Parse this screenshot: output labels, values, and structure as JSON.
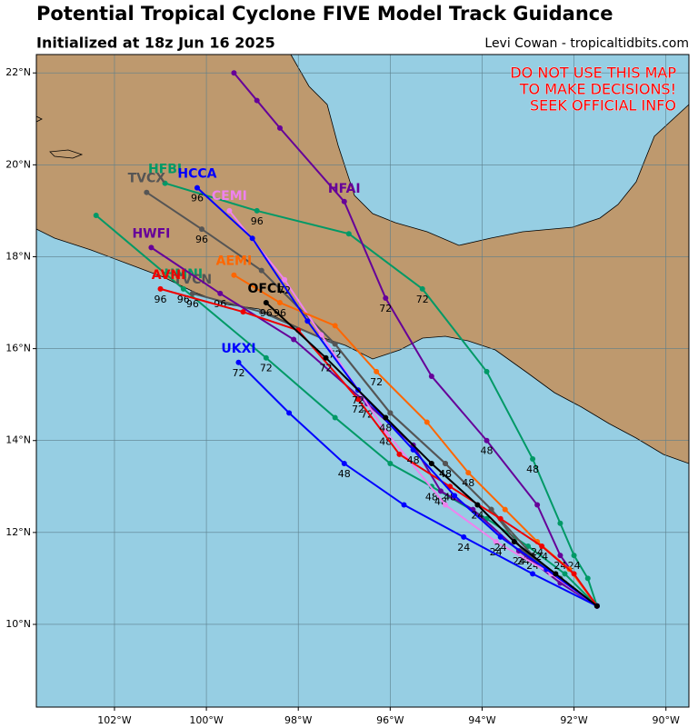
{
  "header": {
    "title": "Potential Tropical Cyclone FIVE Model Track Guidance",
    "subtitle": "Initialized at 18z Jun 16 2025",
    "credit": "Levi Cowan - tropicaltidbits.com"
  },
  "warning": [
    "DO NOT USE THIS MAP",
    "TO MAKE DECISIONS!",
    "SEEK OFFICIAL INFO"
  ],
  "map": {
    "xlim": [
      -103.7,
      -89.5
    ],
    "ylim": [
      8.2,
      22.4
    ],
    "xticks": [
      {
        "value": -102,
        "label": "102°W"
      },
      {
        "value": -100,
        "label": "100°W"
      },
      {
        "value": -98,
        "label": "98°W"
      },
      {
        "value": -96,
        "label": "96°W"
      },
      {
        "value": -94,
        "label": "94°W"
      },
      {
        "value": -92,
        "label": "92°W"
      },
      {
        "value": -90,
        "label": "90°W"
      }
    ],
    "yticks": [
      {
        "value": 10,
        "label": "10°N"
      },
      {
        "value": 12,
        "label": "12°N"
      },
      {
        "value": 14,
        "label": "14°N"
      },
      {
        "value": 16,
        "label": "16°N"
      },
      {
        "value": 18,
        "label": "18°N"
      },
      {
        "value": 20,
        "label": "20°N"
      },
      {
        "value": 22,
        "label": "22°N"
      }
    ],
    "grid": true,
    "tracks": [
      {
        "name": "HMNI",
        "color": "#009966",
        "lon": [
          -91.5,
          -92.2,
          -93.0,
          -93.9,
          -95.1,
          -96.0,
          -97.2,
          -98.7,
          -100.5,
          -102.4
        ],
        "lat": [
          10.4,
          11.1,
          11.7,
          12.3,
          13.0,
          13.5,
          14.5,
          15.8,
          17.3,
          18.9
        ],
        "hours": [
          null,
          null,
          24,
          null,
          48,
          null,
          null,
          72,
          96,
          null
        ]
      },
      {
        "name": "HFBI",
        "color": "#009966",
        "lon": [
          -91.5,
          -91.7,
          -92.0,
          -92.3,
          -92.9,
          -93.9,
          -95.3,
          -96.9,
          -98.9,
          -100.9
        ],
        "lat": [
          10.4,
          11.0,
          11.5,
          12.2,
          13.6,
          15.5,
          17.3,
          18.5,
          19.0,
          19.6
        ],
        "hours": [
          null,
          null,
          24,
          null,
          48,
          null,
          72,
          null,
          96,
          null
        ]
      },
      {
        "name": "TVCX",
        "color": "#555555",
        "lon": [
          -91.5,
          -92.2,
          -92.9,
          -93.8,
          -94.8,
          -96.0,
          -97.2,
          -98.8,
          -100.1,
          -101.3
        ],
        "lat": [
          10.4,
          10.9,
          11.5,
          12.5,
          13.5,
          14.6,
          16.1,
          17.7,
          18.6,
          19.4
        ],
        "hours": [
          null,
          null,
          24,
          null,
          48,
          null,
          72,
          null,
          96,
          null
        ]
      },
      {
        "name": "TVCN",
        "color": "#555555",
        "lon": [
          -91.5,
          -92.3,
          -93.1,
          -93.8,
          -94.8,
          -96.0,
          -97.2,
          -98.8,
          -100.3
        ],
        "lat": [
          10.4,
          11.0,
          11.6,
          12.5,
          13.5,
          14.6,
          16.1,
          16.8,
          17.2
        ],
        "hours": [
          null,
          null,
          24,
          null,
          48,
          null,
          72,
          null,
          96
        ]
      },
      {
        "name": "HWFI",
        "color": "#660099",
        "lon": [
          -91.5,
          -92.3,
          -93.2,
          -94.2,
          -94.9,
          -95.5,
          -96.5,
          -98.1,
          -99.7,
          -101.2
        ],
        "lat": [
          10.4,
          10.9,
          11.6,
          12.5,
          12.9,
          13.9,
          14.8,
          16.2,
          17.2,
          18.2
        ],
        "hours": [
          null,
          null,
          24,
          null,
          48,
          null,
          72,
          null,
          96,
          null
        ]
      },
      {
        "name": "HFAI",
        "color": "#660099",
        "lon": [
          -91.5,
          -92.3,
          -92.8,
          -93.9,
          -95.1,
          -96.1,
          -97.0,
          -98.4,
          -98.9,
          -99.4
        ],
        "lat": [
          10.4,
          11.5,
          12.6,
          14.0,
          15.4,
          17.1,
          19.2,
          20.8,
          21.4,
          22.0
        ],
        "hours": [
          null,
          24,
          null,
          48,
          null,
          72,
          null,
          null,
          null,
          null
        ]
      },
      {
        "name": "CEMI",
        "color": "#ee82ee",
        "lon": [
          -91.5,
          -92.5,
          -93.7,
          -94.8,
          -96.1,
          -97.5,
          -98.3,
          -99.5
        ],
        "lat": [
          10.4,
          11.1,
          11.8,
          12.6,
          14.2,
          16.3,
          17.5,
          19.0
        ],
        "hours": [
          null,
          null,
          24,
          null,
          48,
          null,
          72,
          null
        ]
      },
      {
        "name": "AEMI",
        "color": "#ff6600",
        "lon": [
          -91.5,
          -92.1,
          -92.8,
          -93.5,
          -94.3,
          -95.2,
          -96.3,
          -97.2,
          -98.4,
          -99.4
        ],
        "lat": [
          10.4,
          11.2,
          11.8,
          12.5,
          13.3,
          14.4,
          15.5,
          16.5,
          17.0,
          17.6
        ],
        "hours": [
          null,
          null,
          24,
          null,
          48,
          null,
          72,
          null,
          96,
          null
        ]
      },
      {
        "name": "AVNI",
        "color": "#ee0000",
        "lon": [
          -91.5,
          -92.0,
          -92.7,
          -93.6,
          -94.7,
          -95.8,
          -96.7,
          -98.0,
          -99.2,
          -101.0
        ],
        "lat": [
          10.4,
          11.1,
          11.7,
          12.3,
          13.0,
          13.7,
          14.9,
          16.4,
          16.8,
          17.3
        ],
        "hours": [
          null,
          null,
          24,
          null,
          48,
          null,
          72,
          null,
          null,
          96
        ]
      },
      {
        "name": "UKXI",
        "color": "#0000ff",
        "lon": [
          -91.5,
          -92.9,
          -94.4,
          -95.7,
          -97.0,
          -98.2,
          -99.3
        ],
        "lat": [
          10.4,
          11.1,
          11.9,
          12.6,
          13.5,
          14.6,
          15.7
        ],
        "hours": [
          null,
          null,
          24,
          null,
          48,
          null,
          72
        ]
      },
      {
        "name": "HCCA",
        "color": "#0000ff",
        "lon": [
          -91.5,
          -92.6,
          -93.6,
          -94.6,
          -95.5,
          -96.7,
          -97.8,
          -99.0,
          -100.2
        ],
        "lat": [
          10.4,
          11.2,
          11.9,
          12.8,
          13.8,
          15.1,
          16.6,
          18.4,
          19.5
        ],
        "hours": [
          null,
          null,
          24,
          null,
          48,
          72,
          null,
          null,
          96
        ]
      },
      {
        "name": "OFCL",
        "color": "#000000",
        "lon": [
          -91.5,
          -92.4,
          -93.3,
          -94.1,
          -95.1,
          -96.1,
          -97.4,
          -98.7
        ],
        "lat": [
          10.4,
          11.1,
          11.8,
          12.6,
          13.5,
          14.5,
          15.8,
          17.0
        ],
        "hours": [
          null,
          null,
          null,
          24,
          null,
          48,
          72,
          96
        ]
      }
    ]
  }
}
